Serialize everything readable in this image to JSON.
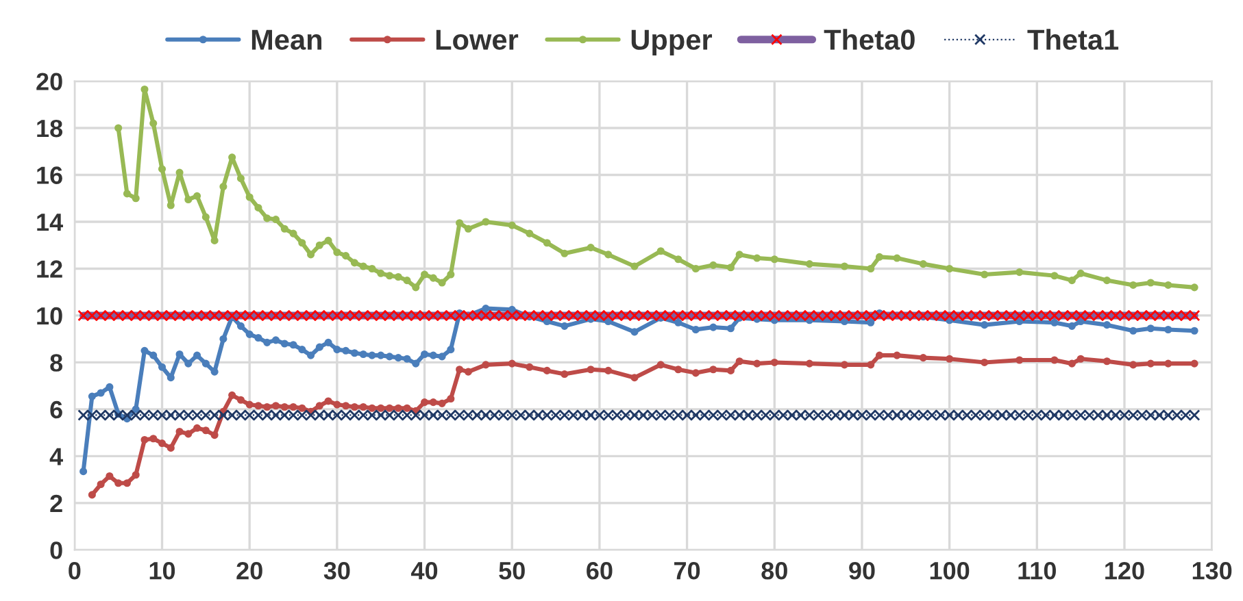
{
  "chart_data": {
    "type": "line",
    "x": [
      1,
      2,
      3,
      4,
      5,
      6,
      7,
      8,
      9,
      10,
      11,
      12,
      13,
      14,
      15,
      16,
      17,
      18,
      19,
      20,
      21,
      22,
      23,
      24,
      25,
      26,
      27,
      28,
      29,
      30,
      31,
      32,
      33,
      34,
      35,
      36,
      37,
      38,
      39,
      40,
      41,
      42,
      43,
      44,
      45,
      47,
      50,
      52,
      54,
      56,
      59,
      61,
      64,
      67,
      69,
      71,
      73,
      75,
      76,
      78,
      80,
      84,
      88,
      91,
      92,
      94,
      97,
      100,
      104,
      108,
      112,
      114,
      115,
      118,
      121,
      123,
      125,
      128
    ],
    "series": [
      {
        "name": "Mean",
        "color": "#4a7ebb",
        "marker": "circle",
        "line_style": "solid",
        "values": [
          3.35,
          6.55,
          6.7,
          6.95,
          5.8,
          5.6,
          6.0,
          8.5,
          8.3,
          7.8,
          7.35,
          8.35,
          7.95,
          8.3,
          7.95,
          7.6,
          9.0,
          9.95,
          9.55,
          9.2,
          9.05,
          8.85,
          8.95,
          8.8,
          8.75,
          8.55,
          8.3,
          8.65,
          8.85,
          8.55,
          8.5,
          8.4,
          8.35,
          8.3,
          8.3,
          8.25,
          8.2,
          8.15,
          7.95,
          8.35,
          8.3,
          8.25,
          8.55,
          10.1,
          10.0,
          10.3,
          10.25,
          9.95,
          9.75,
          9.55,
          9.85,
          9.75,
          9.3,
          9.9,
          9.7,
          9.4,
          9.5,
          9.45,
          9.9,
          9.85,
          9.8,
          9.8,
          9.75,
          9.7,
          10.1,
          10.0,
          9.95,
          9.8,
          9.6,
          9.75,
          9.7,
          9.55,
          9.75,
          9.6,
          9.35,
          9.45,
          9.4,
          9.35
        ]
      },
      {
        "name": "Lower",
        "color": "#be4b48",
        "marker": "circle",
        "line_style": "solid",
        "values": [
          null,
          2.35,
          2.8,
          3.15,
          2.85,
          2.85,
          3.2,
          4.7,
          4.75,
          4.55,
          4.35,
          5.05,
          4.95,
          5.2,
          5.1,
          4.9,
          5.9,
          6.6,
          6.4,
          6.2,
          6.15,
          6.1,
          6.15,
          6.1,
          6.1,
          6.05,
          5.9,
          6.15,
          6.35,
          6.2,
          6.15,
          6.1,
          6.1,
          6.05,
          6.05,
          6.05,
          6.05,
          6.05,
          5.93,
          6.3,
          6.3,
          6.25,
          6.45,
          7.7,
          7.6,
          7.9,
          7.95,
          7.8,
          7.65,
          7.5,
          7.7,
          7.65,
          7.35,
          7.9,
          7.7,
          7.55,
          7.7,
          7.65,
          8.05,
          7.95,
          8.0,
          7.95,
          7.9,
          7.9,
          8.3,
          8.3,
          8.2,
          8.15,
          8.0,
          8.1,
          8.1,
          7.95,
          8.15,
          8.05,
          7.9,
          7.95,
          7.95,
          7.95
        ]
      },
      {
        "name": "Upper",
        "color": "#98b954",
        "marker": "circle",
        "line_style": "solid",
        "values": [
          null,
          null,
          null,
          null,
          18.0,
          15.2,
          15.0,
          19.65,
          18.2,
          16.25,
          14.7,
          16.1,
          14.95,
          15.1,
          14.2,
          13.2,
          15.5,
          16.75,
          15.85,
          15.05,
          14.6,
          14.15,
          14.1,
          13.7,
          13.5,
          13.1,
          12.6,
          13.0,
          13.2,
          12.7,
          12.55,
          12.25,
          12.1,
          12.0,
          11.8,
          11.7,
          11.65,
          11.5,
          11.2,
          11.75,
          11.6,
          11.4,
          11.75,
          13.95,
          13.7,
          14.0,
          13.85,
          13.5,
          13.1,
          12.65,
          12.9,
          12.6,
          12.1,
          12.75,
          12.4,
          12.0,
          12.15,
          12.05,
          12.6,
          12.45,
          12.4,
          12.2,
          12.1,
          12.0,
          12.5,
          12.45,
          12.2,
          12.0,
          11.75,
          11.85,
          11.7,
          11.5,
          11.8,
          11.5,
          11.3,
          11.4,
          11.3,
          11.2
        ]
      },
      {
        "name": "Theta0",
        "color": "#7e60a0",
        "marker": "cross",
        "line_style": "solid",
        "x": [
          1,
          2,
          3,
          4,
          5,
          6,
          7,
          8,
          9,
          10,
          11,
          12,
          13,
          14,
          15,
          16,
          17,
          18,
          19,
          20,
          21,
          22,
          23,
          24,
          25,
          26,
          27,
          28,
          29,
          30,
          31,
          32,
          33,
          34,
          35,
          36,
          37,
          38,
          39,
          40,
          41,
          42,
          43,
          44,
          45,
          46,
          47,
          48,
          49,
          50,
          51,
          52,
          53,
          54,
          55,
          56,
          57,
          58,
          59,
          60,
          61,
          62,
          63,
          64,
          65,
          66,
          67,
          68,
          69,
          70,
          71,
          72,
          73,
          74,
          75,
          76,
          77,
          78,
          79,
          80,
          81,
          82,
          83,
          84,
          85,
          86,
          87,
          88,
          89,
          90,
          91,
          92,
          93,
          94,
          95,
          96,
          97,
          98,
          99,
          100,
          101,
          102,
          103,
          104,
          105,
          106,
          107,
          108,
          109,
          110,
          111,
          112,
          113,
          114,
          115,
          116,
          117,
          118,
          119,
          120,
          121,
          122,
          123,
          124,
          125,
          126,
          127,
          128
        ],
        "values": [
          10,
          10,
          10,
          10,
          10,
          10,
          10,
          10,
          10,
          10,
          10,
          10,
          10,
          10,
          10,
          10,
          10,
          10,
          10,
          10,
          10,
          10,
          10,
          10,
          10,
          10,
          10,
          10,
          10,
          10,
          10,
          10,
          10,
          10,
          10,
          10,
          10,
          10,
          10,
          10,
          10,
          10,
          10,
          10,
          10,
          10,
          10,
          10,
          10,
          10,
          10,
          10,
          10,
          10,
          10,
          10,
          10,
          10,
          10,
          10,
          10,
          10,
          10,
          10,
          10,
          10,
          10,
          10,
          10,
          10,
          10,
          10,
          10,
          10,
          10,
          10,
          10,
          10,
          10,
          10,
          10,
          10,
          10,
          10,
          10,
          10,
          10,
          10,
          10,
          10,
          10,
          10,
          10,
          10,
          10,
          10,
          10,
          10,
          10,
          10,
          10,
          10,
          10,
          10,
          10,
          10,
          10,
          10,
          10,
          10,
          10,
          10,
          10,
          10,
          10,
          10,
          10,
          10,
          10,
          10,
          10,
          10,
          10,
          10,
          10,
          10,
          10,
          10
        ]
      },
      {
        "name": "Theta1",
        "color": "#1f3864",
        "marker": "cross",
        "line_style": "dotted",
        "x": [
          1,
          2,
          3,
          4,
          5,
          6,
          7,
          8,
          9,
          10,
          11,
          12,
          13,
          14,
          15,
          16,
          17,
          18,
          19,
          20,
          21,
          22,
          23,
          24,
          25,
          26,
          27,
          28,
          29,
          30,
          31,
          32,
          33,
          34,
          35,
          36,
          37,
          38,
          39,
          40,
          41,
          42,
          43,
          44,
          45,
          46,
          47,
          48,
          49,
          50,
          51,
          52,
          53,
          54,
          55,
          56,
          57,
          58,
          59,
          60,
          61,
          62,
          63,
          64,
          65,
          66,
          67,
          68,
          69,
          70,
          71,
          72,
          73,
          74,
          75,
          76,
          77,
          78,
          79,
          80,
          81,
          82,
          83,
          84,
          85,
          86,
          87,
          88,
          89,
          90,
          91,
          92,
          93,
          94,
          95,
          96,
          97,
          98,
          99,
          100,
          101,
          102,
          103,
          104,
          105,
          106,
          107,
          108,
          109,
          110,
          111,
          112,
          113,
          114,
          115,
          116,
          117,
          118,
          119,
          120,
          121,
          122,
          123,
          124,
          125,
          126,
          127,
          128
        ],
        "values": [
          5.75,
          5.75,
          5.75,
          5.75,
          5.75,
          5.75,
          5.75,
          5.75,
          5.75,
          5.75,
          5.75,
          5.75,
          5.75,
          5.75,
          5.75,
          5.75,
          5.75,
          5.75,
          5.75,
          5.75,
          5.75,
          5.75,
          5.75,
          5.75,
          5.75,
          5.75,
          5.75,
          5.75,
          5.75,
          5.75,
          5.75,
          5.75,
          5.75,
          5.75,
          5.75,
          5.75,
          5.75,
          5.75,
          5.75,
          5.75,
          5.75,
          5.75,
          5.75,
          5.75,
          5.75,
          5.75,
          5.75,
          5.75,
          5.75,
          5.75,
          5.75,
          5.75,
          5.75,
          5.75,
          5.75,
          5.75,
          5.75,
          5.75,
          5.75,
          5.75,
          5.75,
          5.75,
          5.75,
          5.75,
          5.75,
          5.75,
          5.75,
          5.75,
          5.75,
          5.75,
          5.75,
          5.75,
          5.75,
          5.75,
          5.75,
          5.75,
          5.75,
          5.75,
          5.75,
          5.75,
          5.75,
          5.75,
          5.75,
          5.75,
          5.75,
          5.75,
          5.75,
          5.75,
          5.75,
          5.75,
          5.75,
          5.75,
          5.75,
          5.75,
          5.75,
          5.75,
          5.75,
          5.75,
          5.75,
          5.75,
          5.75,
          5.75,
          5.75,
          5.75,
          5.75,
          5.75,
          5.75,
          5.75,
          5.75,
          5.75,
          5.75,
          5.75,
          5.75,
          5.75,
          5.75,
          5.75,
          5.75,
          5.75,
          5.75,
          5.75,
          5.75,
          5.75,
          5.75,
          5.75,
          5.75,
          5.75,
          5.75,
          5.75
        ]
      }
    ],
    "xlim": [
      0,
      130
    ],
    "xticks": [
      0,
      10,
      20,
      30,
      40,
      50,
      60,
      70,
      80,
      90,
      100,
      110,
      120,
      130
    ],
    "ylim": [
      0,
      20
    ],
    "yticks": [
      0,
      2,
      4,
      6,
      8,
      10,
      12,
      14,
      16,
      18,
      20
    ],
    "grid": true,
    "legend": "top"
  }
}
